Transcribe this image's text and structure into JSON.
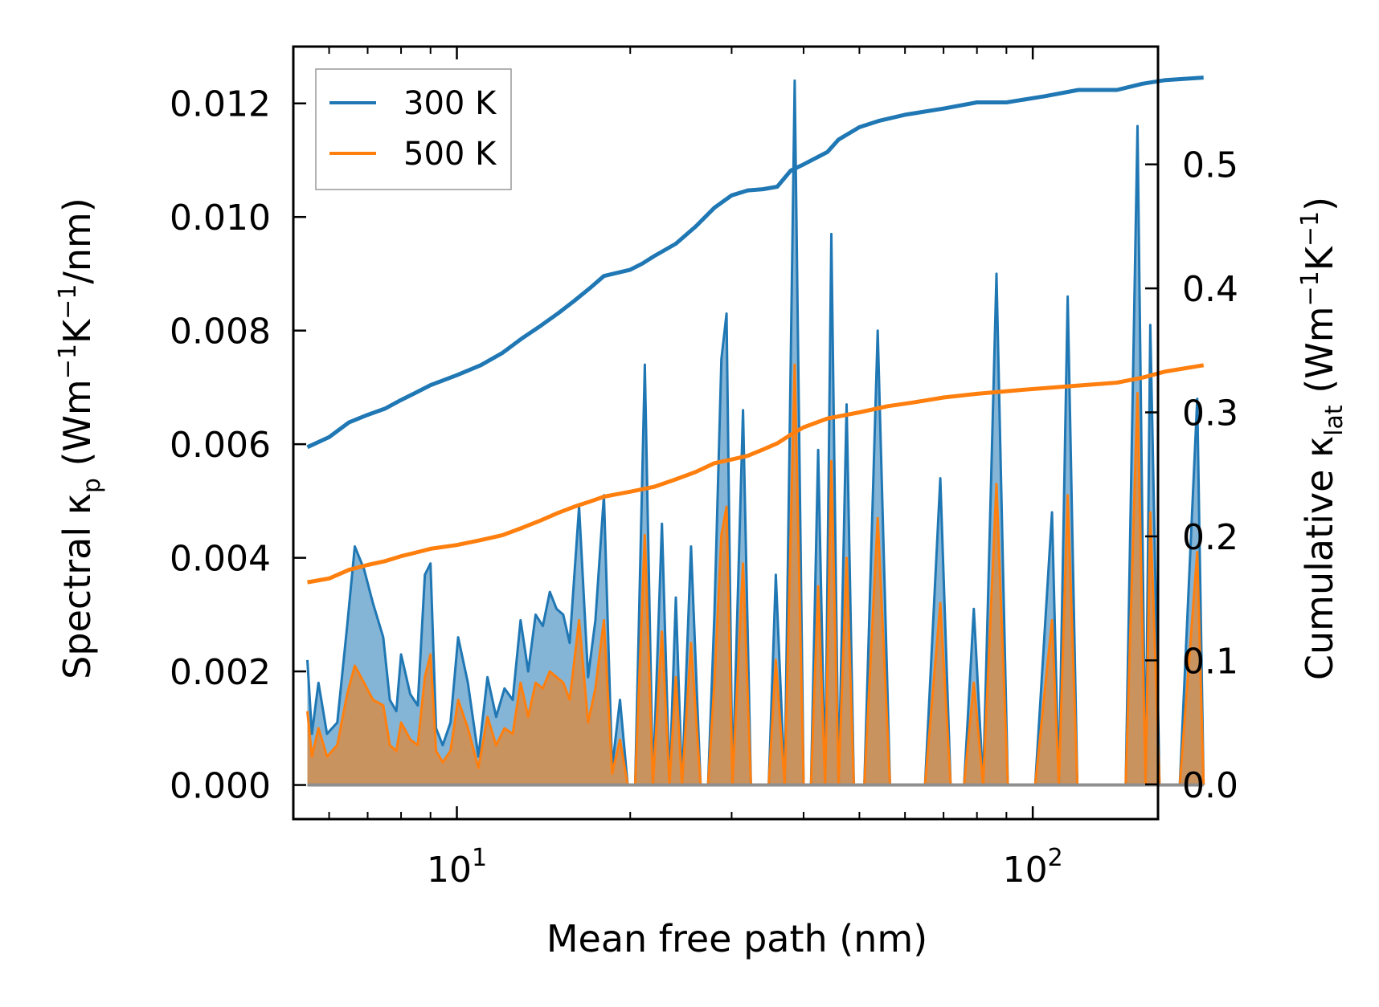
{
  "chart_data": {
    "type": "line",
    "title": "",
    "xlabel": "Mean free path (nm)",
    "xscale": "log",
    "xlim": [
      5.2,
      165
    ],
    "x_ticks": [
      {
        "value": 10,
        "label": "10",
        "exp": "1"
      },
      {
        "value": 100,
        "label": "10",
        "exp": "2"
      }
    ],
    "left_axis": {
      "label": {
        "main": "Spectral κ",
        "sub": "p",
        "unit_pre": " (Wm",
        "sup1": "−1",
        "mid": "K",
        "sup2": "−1",
        "unit_post": "/nm)"
      },
      "ylim": [
        -0.0006,
        0.013
      ],
      "ticks": [
        {
          "value": 0.0,
          "label": "0.000"
        },
        {
          "value": 0.002,
          "label": "0.002"
        },
        {
          "value": 0.004,
          "label": "0.004"
        },
        {
          "value": 0.006,
          "label": "0.006"
        },
        {
          "value": 0.008,
          "label": "0.008"
        },
        {
          "value": 0.01,
          "label": "0.010"
        },
        {
          "value": 0.012,
          "label": "0.012"
        }
      ]
    },
    "right_axis": {
      "label": {
        "main": "Cumulative κ",
        "sub": "lat",
        "unit_pre": " (Wm",
        "sup1": "−1",
        "mid": "K",
        "sup2": "−1",
        "unit_post": ")"
      },
      "ylim": [
        -0.028,
        0.595
      ],
      "ticks": [
        {
          "value": 0.0,
          "label": "0.0"
        },
        {
          "value": 0.1,
          "label": "0.1"
        },
        {
          "value": 0.2,
          "label": "0.2"
        },
        {
          "value": 0.3,
          "label": "0.3"
        },
        {
          "value": 0.4,
          "label": "0.4"
        },
        {
          "value": 0.5,
          "label": "0.5"
        }
      ]
    },
    "legend": {
      "position": "top-left",
      "entries": [
        "300 K",
        "500 K"
      ]
    },
    "colors": {
      "300 K": "#1f77b4",
      "500 K": "#ff7f0e",
      "fill_300": "#1f77b4",
      "fill_500": "#e08838"
    },
    "spectral_series": [
      {
        "name": "300 K",
        "points": [
          [
            5.5,
            0.0022
          ],
          [
            5.6,
            0.0009
          ],
          [
            5.75,
            0.0018
          ],
          [
            5.95,
            0.0009
          ],
          [
            6.2,
            0.0011
          ],
          [
            6.45,
            0.0028
          ],
          [
            6.65,
            0.0042
          ],
          [
            6.9,
            0.0038
          ],
          [
            7.15,
            0.0032
          ],
          [
            7.45,
            0.0026
          ],
          [
            7.65,
            0.0015
          ],
          [
            7.85,
            0.0013
          ],
          [
            8.0,
            0.0023
          ],
          [
            8.3,
            0.0016
          ],
          [
            8.55,
            0.0014
          ],
          [
            8.8,
            0.0037
          ],
          [
            9.0,
            0.0039
          ],
          [
            9.2,
            0.001
          ],
          [
            9.45,
            0.0007
          ],
          [
            9.75,
            0.0011
          ],
          [
            10.05,
            0.0026
          ],
          [
            10.45,
            0.0018
          ],
          [
            10.9,
            0.0005
          ],
          [
            11.3,
            0.0019
          ],
          [
            11.7,
            0.0012
          ],
          [
            12.1,
            0.0017
          ],
          [
            12.5,
            0.0015
          ],
          [
            12.9,
            0.0029
          ],
          [
            13.3,
            0.002
          ],
          [
            13.7,
            0.003
          ],
          [
            14.1,
            0.0028
          ],
          [
            14.5,
            0.0034
          ],
          [
            14.9,
            0.0031
          ],
          [
            15.3,
            0.003
          ],
          [
            15.7,
            0.0025
          ],
          [
            16.3,
            0.0049
          ],
          [
            16.9,
            0.0019
          ],
          [
            17.4,
            0.0029
          ],
          [
            18.0,
            0.0051
          ],
          [
            18.6,
            0.0003
          ],
          [
            19.2,
            0.0015
          ],
          [
            19.8,
            0.0
          ],
          [
            20.4,
            0.0
          ],
          [
            21.2,
            0.0074
          ],
          [
            21.9,
            0.0
          ],
          [
            22.7,
            0.0046
          ],
          [
            23.4,
            0.0
          ],
          [
            24.0,
            0.0033
          ],
          [
            24.6,
            0.0
          ],
          [
            25.5,
            0.0042
          ],
          [
            26.5,
            0.0
          ],
          [
            27.3,
            0.0
          ],
          [
            28.0,
            0.003
          ],
          [
            28.8,
            0.0075
          ],
          [
            29.4,
            0.0083
          ],
          [
            30.1,
            0.0
          ],
          [
            31.4,
            0.0066
          ],
          [
            32.4,
            0.0
          ],
          [
            33.6,
            0.0
          ],
          [
            34.8,
            0.0
          ],
          [
            35.8,
            0.0037
          ],
          [
            37.1,
            0.0
          ],
          [
            38.6,
            0.0124
          ],
          [
            40.0,
            0.0
          ],
          [
            41.2,
            0.0
          ],
          [
            42.4,
            0.0059
          ],
          [
            43.6,
            0.0
          ],
          [
            44.7,
            0.0097
          ],
          [
            46.0,
            0.0
          ],
          [
            47.5,
            0.0067
          ],
          [
            48.9,
            0.0
          ],
          [
            51.0,
            0.0
          ],
          [
            53.8,
            0.008
          ],
          [
            56.5,
            0.0
          ],
          [
            60.0,
            0.0
          ],
          [
            65.0,
            0.0
          ],
          [
            69.1,
            0.0054
          ],
          [
            72.0,
            0.0
          ],
          [
            76.0,
            0.0
          ],
          [
            79.0,
            0.0031
          ],
          [
            82.0,
            0.0
          ],
          [
            86.5,
            0.009
          ],
          [
            90.5,
            0.0
          ],
          [
            95.0,
            0.0
          ],
          [
            101.0,
            0.0
          ],
          [
            108.0,
            0.0048
          ],
          [
            111.0,
            0.0
          ],
          [
            115.0,
            0.0086
          ],
          [
            119.5,
            0.0
          ],
          [
            130.0,
            0.0
          ],
          [
            145.0,
            0.0
          ],
          [
            152.0,
            0.0116
          ],
          [
            157.0,
            0.0
          ],
          [
            160.0,
            0.0081
          ],
          [
            166.0,
            0.0
          ],
          [
            180.0,
            0.0
          ],
          [
            193.0,
            0.0068
          ],
          [
            198.0,
            0.0
          ]
        ]
      },
      {
        "name": "500 K",
        "points": [
          [
            5.5,
            0.0013
          ],
          [
            5.6,
            0.0005
          ],
          [
            5.75,
            0.001
          ],
          [
            5.95,
            0.0005
          ],
          [
            6.2,
            0.0007
          ],
          [
            6.45,
            0.0016
          ],
          [
            6.65,
            0.0021
          ],
          [
            6.9,
            0.0018
          ],
          [
            7.15,
            0.0015
          ],
          [
            7.45,
            0.0014
          ],
          [
            7.65,
            0.0007
          ],
          [
            7.85,
            0.0006
          ],
          [
            8.0,
            0.0011
          ],
          [
            8.3,
            0.0008
          ],
          [
            8.55,
            0.0007
          ],
          [
            8.8,
            0.0019
          ],
          [
            9.0,
            0.0023
          ],
          [
            9.2,
            0.0006
          ],
          [
            9.45,
            0.0004
          ],
          [
            9.75,
            0.0006
          ],
          [
            10.05,
            0.0015
          ],
          [
            10.45,
            0.001
          ],
          [
            10.9,
            0.0003
          ],
          [
            11.3,
            0.0012
          ],
          [
            11.7,
            0.0007
          ],
          [
            12.1,
            0.001
          ],
          [
            12.5,
            0.0009
          ],
          [
            12.9,
            0.0018
          ],
          [
            13.3,
            0.0012
          ],
          [
            13.7,
            0.0018
          ],
          [
            14.1,
            0.0017
          ],
          [
            14.5,
            0.002
          ],
          [
            14.9,
            0.0019
          ],
          [
            15.3,
            0.0018
          ],
          [
            15.7,
            0.0015
          ],
          [
            16.3,
            0.0029
          ],
          [
            16.9,
            0.0011
          ],
          [
            17.4,
            0.0017
          ],
          [
            18.0,
            0.0029
          ],
          [
            18.6,
            0.0002
          ],
          [
            19.2,
            0.0008
          ],
          [
            19.8,
            0.0
          ],
          [
            20.4,
            0.0
          ],
          [
            21.2,
            0.0044
          ],
          [
            21.9,
            0.0
          ],
          [
            22.7,
            0.0027
          ],
          [
            23.4,
            0.0
          ],
          [
            24.0,
            0.0019
          ],
          [
            24.6,
            0.0
          ],
          [
            25.5,
            0.0025
          ],
          [
            26.5,
            0.0
          ],
          [
            27.3,
            0.0
          ],
          [
            28.0,
            0.0018
          ],
          [
            28.8,
            0.0044
          ],
          [
            29.4,
            0.0049
          ],
          [
            30.1,
            0.0
          ],
          [
            31.4,
            0.0039
          ],
          [
            32.4,
            0.0
          ],
          [
            33.6,
            0.0
          ],
          [
            34.8,
            0.0
          ],
          [
            35.8,
            0.0022
          ],
          [
            37.1,
            0.0
          ],
          [
            38.6,
            0.0074
          ],
          [
            40.0,
            0.0
          ],
          [
            41.2,
            0.0
          ],
          [
            42.4,
            0.0035
          ],
          [
            43.6,
            0.0
          ],
          [
            44.7,
            0.0057
          ],
          [
            46.0,
            0.0
          ],
          [
            47.5,
            0.004
          ],
          [
            48.9,
            0.0
          ],
          [
            51.0,
            0.0
          ],
          [
            53.8,
            0.0047
          ],
          [
            56.5,
            0.0
          ],
          [
            60.0,
            0.0
          ],
          [
            65.0,
            0.0
          ],
          [
            69.1,
            0.0032
          ],
          [
            72.0,
            0.0
          ],
          [
            76.0,
            0.0
          ],
          [
            79.0,
            0.0018
          ],
          [
            82.0,
            0.0
          ],
          [
            86.5,
            0.0053
          ],
          [
            90.5,
            0.0
          ],
          [
            95.0,
            0.0
          ],
          [
            101.0,
            0.0
          ],
          [
            108.0,
            0.0029
          ],
          [
            111.0,
            0.0
          ],
          [
            115.0,
            0.0051
          ],
          [
            119.5,
            0.0
          ],
          [
            130.0,
            0.0
          ],
          [
            145.0,
            0.0
          ],
          [
            152.0,
            0.0069
          ],
          [
            157.0,
            0.0
          ],
          [
            160.0,
            0.0048
          ],
          [
            166.0,
            0.0
          ],
          [
            180.0,
            0.0
          ],
          [
            193.0,
            0.0041
          ],
          [
            198.0,
            0.0
          ]
        ]
      }
    ],
    "cumulative_series": [
      {
        "name": "300 K",
        "points": [
          [
            5.5,
            0.272
          ],
          [
            6.0,
            0.28
          ],
          [
            6.5,
            0.292
          ],
          [
            7.0,
            0.298
          ],
          [
            7.5,
            0.303
          ],
          [
            8.0,
            0.31
          ],
          [
            8.5,
            0.316
          ],
          [
            9.0,
            0.322
          ],
          [
            10.0,
            0.33
          ],
          [
            11.0,
            0.338
          ],
          [
            12.0,
            0.348
          ],
          [
            13.0,
            0.36
          ],
          [
            14.0,
            0.37
          ],
          [
            15.0,
            0.38
          ],
          [
            16.0,
            0.39
          ],
          [
            17.0,
            0.4
          ],
          [
            18.0,
            0.41
          ],
          [
            20.0,
            0.415
          ],
          [
            21.0,
            0.42
          ],
          [
            22.0,
            0.426
          ],
          [
            24.0,
            0.436
          ],
          [
            26.0,
            0.45
          ],
          [
            28.0,
            0.465
          ],
          [
            30.0,
            0.475
          ],
          [
            32.0,
            0.479
          ],
          [
            34.0,
            0.48
          ],
          [
            36.0,
            0.482
          ],
          [
            38.0,
            0.495
          ],
          [
            40.0,
            0.5
          ],
          [
            44.0,
            0.51
          ],
          [
            46.0,
            0.52
          ],
          [
            50.0,
            0.53
          ],
          [
            54.0,
            0.535
          ],
          [
            60.0,
            0.54
          ],
          [
            70.0,
            0.545
          ],
          [
            80.0,
            0.55
          ],
          [
            90.0,
            0.55
          ],
          [
            105.0,
            0.555
          ],
          [
            120.0,
            0.56
          ],
          [
            140.0,
            0.56
          ],
          [
            155.0,
            0.565
          ],
          [
            170.0,
            0.568
          ],
          [
            198.0,
            0.57
          ]
        ]
      },
      {
        "name": "500 K",
        "points": [
          [
            5.5,
            0.163
          ],
          [
            6.0,
            0.166
          ],
          [
            6.5,
            0.173
          ],
          [
            7.0,
            0.177
          ],
          [
            7.5,
            0.18
          ],
          [
            8.0,
            0.184
          ],
          [
            8.5,
            0.187
          ],
          [
            9.0,
            0.19
          ],
          [
            10.0,
            0.193
          ],
          [
            11.0,
            0.197
          ],
          [
            12.0,
            0.201
          ],
          [
            13.0,
            0.207
          ],
          [
            14.0,
            0.213
          ],
          [
            15.0,
            0.219
          ],
          [
            16.0,
            0.224
          ],
          [
            17.0,
            0.228
          ],
          [
            18.0,
            0.232
          ],
          [
            20.0,
            0.236
          ],
          [
            22.0,
            0.24
          ],
          [
            24.0,
            0.246
          ],
          [
            26.0,
            0.252
          ],
          [
            28.0,
            0.259
          ],
          [
            30.0,
            0.262
          ],
          [
            32.0,
            0.265
          ],
          [
            34.0,
            0.27
          ],
          [
            36.0,
            0.275
          ],
          [
            38.0,
            0.282
          ],
          [
            40.0,
            0.288
          ],
          [
            44.0,
            0.295
          ],
          [
            50.0,
            0.3
          ],
          [
            56.0,
            0.305
          ],
          [
            62.0,
            0.308
          ],
          [
            70.0,
            0.312
          ],
          [
            80.0,
            0.315
          ],
          [
            95.0,
            0.318
          ],
          [
            115.0,
            0.321
          ],
          [
            140.0,
            0.324
          ],
          [
            155.0,
            0.328
          ],
          [
            170.0,
            0.333
          ],
          [
            198.0,
            0.338
          ]
        ]
      }
    ]
  }
}
